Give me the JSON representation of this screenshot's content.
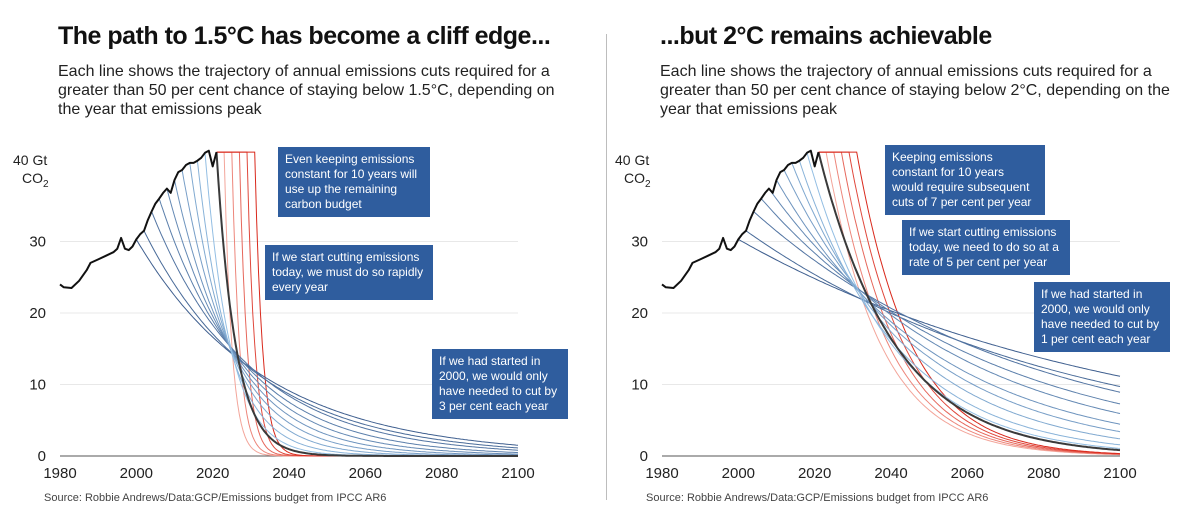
{
  "panels": [
    {
      "title": "The path to 1.5°C has become a cliff edge...",
      "subtitle": "Each line shows the trajectory of annual emissions cuts required for a greater than 50 per cent chance of staying below 1.5°C, depending on the year that emissions peak",
      "unit_top": "40 Gt",
      "unit_bottom": "CO",
      "unit_sub": "2",
      "source": "Source: Robbie Andrews/Data:GCP/Emissions budget from IPCC AR6",
      "callouts": [
        "Even keeping emissions constant for 10 years will use up the remaining carbon budget",
        "If we start cutting emissions today, we must do so rapidly every year",
        "If we had started in 2000, we would only have needed to cut by 3 per cent each year"
      ]
    },
    {
      "title": "...but 2°C remains achievable",
      "subtitle": "Each line shows the trajectory of annual emissions cuts required for a greater than 50 per cent chance of staying below 2°C, depending on the year that emissions peak",
      "unit_top": "40 Gt",
      "unit_bottom": "CO",
      "unit_sub": "2",
      "source": "Source: Robbie Andrews/Data:GCP/Emissions budget from IPCC AR6",
      "callouts": [
        "Keeping emissions constant for 10 years would require subsequent cuts of 7 per cent per year",
        "If we start cutting emissions today, we need to do so at a rate of 5 per cent per year",
        "If we had started in 2000, we would only have needed to cut by 1 per cent each year"
      ]
    }
  ],
  "chart_data": [
    {
      "type": "line",
      "target": "1.5°C",
      "xlim": [
        1980,
        2100
      ],
      "ylim": [
        0,
        40
      ],
      "x_ticks": [
        1980,
        2000,
        2020,
        2040,
        2060,
        2080,
        2100
      ],
      "y_ticks": [
        0,
        10,
        20,
        30
      ],
      "top_tick_label": "40 Gt",
      "historical": {
        "x": [
          1980,
          1981,
          1983,
          1985,
          1987,
          1988,
          1990,
          1992,
          1994,
          1995,
          1996,
          1997,
          1998,
          1999,
          2000,
          2001,
          2002,
          2003,
          2004,
          2005,
          2006,
          2007,
          2008,
          2009,
          2010,
          2011,
          2012,
          2013,
          2014,
          2015,
          2016,
          2017,
          2018,
          2019,
          2020,
          2021
        ],
        "y": [
          24,
          23.6,
          23.5,
          24.5,
          26,
          27,
          27.5,
          28,
          28.5,
          29,
          30.5,
          29,
          28.8,
          29.3,
          30.3,
          31,
          31.5,
          33,
          34.2,
          35.3,
          36,
          36.8,
          37.4,
          36.8,
          38.6,
          39.7,
          40,
          40.7,
          41,
          41,
          41.3,
          41.7,
          42.4,
          42.7,
          40.5,
          42.5
        ]
      },
      "pathways": [
        {
          "peak_year": 2000,
          "peak": 30.3,
          "decline_rate": 0.03
        },
        {
          "peak_year": 2002,
          "peak": 31.5,
          "decline_rate": 0.034
        },
        {
          "peak_year": 2004,
          "peak": 34.2,
          "decline_rate": 0.039
        },
        {
          "peak_year": 2006,
          "peak": 36.0,
          "decline_rate": 0.046
        },
        {
          "peak_year": 2008,
          "peak": 37.4,
          "decline_rate": 0.054
        },
        {
          "peak_year": 2010,
          "peak": 38.6,
          "decline_rate": 0.064
        },
        {
          "peak_year": 2012,
          "peak": 40.0,
          "decline_rate": 0.077
        },
        {
          "peak_year": 2014,
          "peak": 41.0,
          "decline_rate": 0.094
        },
        {
          "peak_year": 2016,
          "peak": 41.3,
          "decline_rate": 0.118
        },
        {
          "peak_year": 2018,
          "peak": 42.4,
          "decline_rate": 0.152
        },
        {
          "peak_year": 2021,
          "peak": 42.5,
          "decline_rate": 0.2,
          "highlight": true
        }
      ],
      "constant_scenarios": {
        "from_year": 2021,
        "level": 42.5,
        "hold_years": [
          2,
          4,
          6,
          8,
          10
        ],
        "decline_rate": 0.5
      }
    },
    {
      "type": "line",
      "target": "2°C",
      "xlim": [
        1980,
        2100
      ],
      "ylim": [
        0,
        40
      ],
      "x_ticks": [
        1980,
        2000,
        2020,
        2040,
        2060,
        2080,
        2100
      ],
      "y_ticks": [
        0,
        10,
        20,
        30
      ],
      "top_tick_label": "40 Gt",
      "historical": {
        "x": [
          1980,
          1981,
          1983,
          1985,
          1987,
          1988,
          1990,
          1992,
          1994,
          1995,
          1996,
          1997,
          1998,
          1999,
          2000,
          2001,
          2002,
          2003,
          2004,
          2005,
          2006,
          2007,
          2008,
          2009,
          2010,
          2011,
          2012,
          2013,
          2014,
          2015,
          2016,
          2017,
          2018,
          2019,
          2020,
          2021
        ],
        "y": [
          24,
          23.6,
          23.5,
          24.5,
          26,
          27,
          27.5,
          28,
          28.5,
          29,
          30.5,
          29,
          28.8,
          29.3,
          30.3,
          31,
          31.5,
          33,
          34.2,
          35.3,
          36,
          36.8,
          37.4,
          36.8,
          38.6,
          39.7,
          40,
          40.7,
          41,
          41,
          41.3,
          41.7,
          42.4,
          42.7,
          40.5,
          42.5
        ]
      },
      "pathways": [
        {
          "peak_year": 2000,
          "peak": 30.3,
          "decline_rate": 0.01
        },
        {
          "peak_year": 2002,
          "peak": 31.5,
          "decline_rate": 0.012
        },
        {
          "peak_year": 2004,
          "peak": 34.2,
          "decline_rate": 0.014
        },
        {
          "peak_year": 2006,
          "peak": 36.0,
          "decline_rate": 0.017
        },
        {
          "peak_year": 2008,
          "peak": 37.4,
          "decline_rate": 0.02
        },
        {
          "peak_year": 2010,
          "peak": 38.6,
          "decline_rate": 0.024
        },
        {
          "peak_year": 2012,
          "peak": 40.0,
          "decline_rate": 0.028
        },
        {
          "peak_year": 2014,
          "peak": 41.0,
          "decline_rate": 0.033
        },
        {
          "peak_year": 2016,
          "peak": 41.3,
          "decline_rate": 0.039
        },
        {
          "peak_year": 2018,
          "peak": 42.4,
          "decline_rate": 0.045
        },
        {
          "peak_year": 2021,
          "peak": 42.5,
          "decline_rate": 0.05,
          "highlight": true
        }
      ],
      "constant_scenarios": {
        "from_year": 2021,
        "level": 42.5,
        "hold_years": [
          2,
          4,
          6,
          8,
          10
        ],
        "decline_rate": 0.07
      }
    }
  ]
}
